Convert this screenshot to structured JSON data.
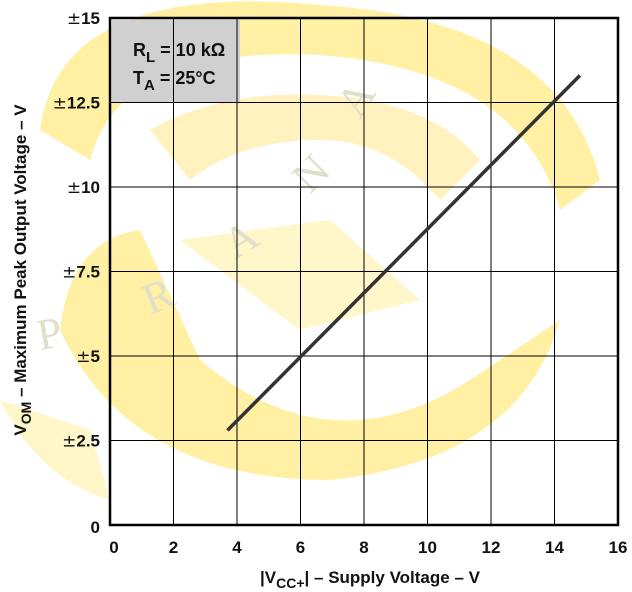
{
  "chart_data": {
    "type": "line",
    "xlabel": {
      "prefix": "|V",
      "sub": "CC+",
      "suffix": "| – Supply Voltage – V"
    },
    "ylabel": {
      "prefix": "V",
      "sub": "OM",
      "suffix": " – Maximum Peak Output Voltage – V"
    },
    "xlim": [
      0,
      16
    ],
    "ylim": [
      0,
      15
    ],
    "x_ticks": [
      0,
      2,
      4,
      6,
      8,
      10,
      12,
      14,
      16
    ],
    "x_tick_labels": [
      "0",
      "2",
      "4",
      "6",
      "8",
      "10",
      "12",
      "14",
      "16"
    ],
    "y_ticks": [
      0,
      2.5,
      5,
      7.5,
      10,
      12.5,
      15
    ],
    "y_tick_labels": [
      "0",
      "±2.5",
      "±5",
      "±7.5",
      "±10",
      "±12.5",
      "±15"
    ],
    "grid": true,
    "conditions": [
      {
        "prefix": "R",
        "sub": "L",
        "suffix": " = 10 kΩ"
      },
      {
        "prefix": "T",
        "sub": "A",
        "suffix": " = 25°C"
      }
    ],
    "series": [
      {
        "x": [
          3.7,
          14.8
        ],
        "y": [
          2.8,
          13.3
        ],
        "color": "#333333"
      }
    ],
    "colors": {
      "line": "#333333",
      "grid": "#000000",
      "watermark": "#ffd800"
    }
  }
}
